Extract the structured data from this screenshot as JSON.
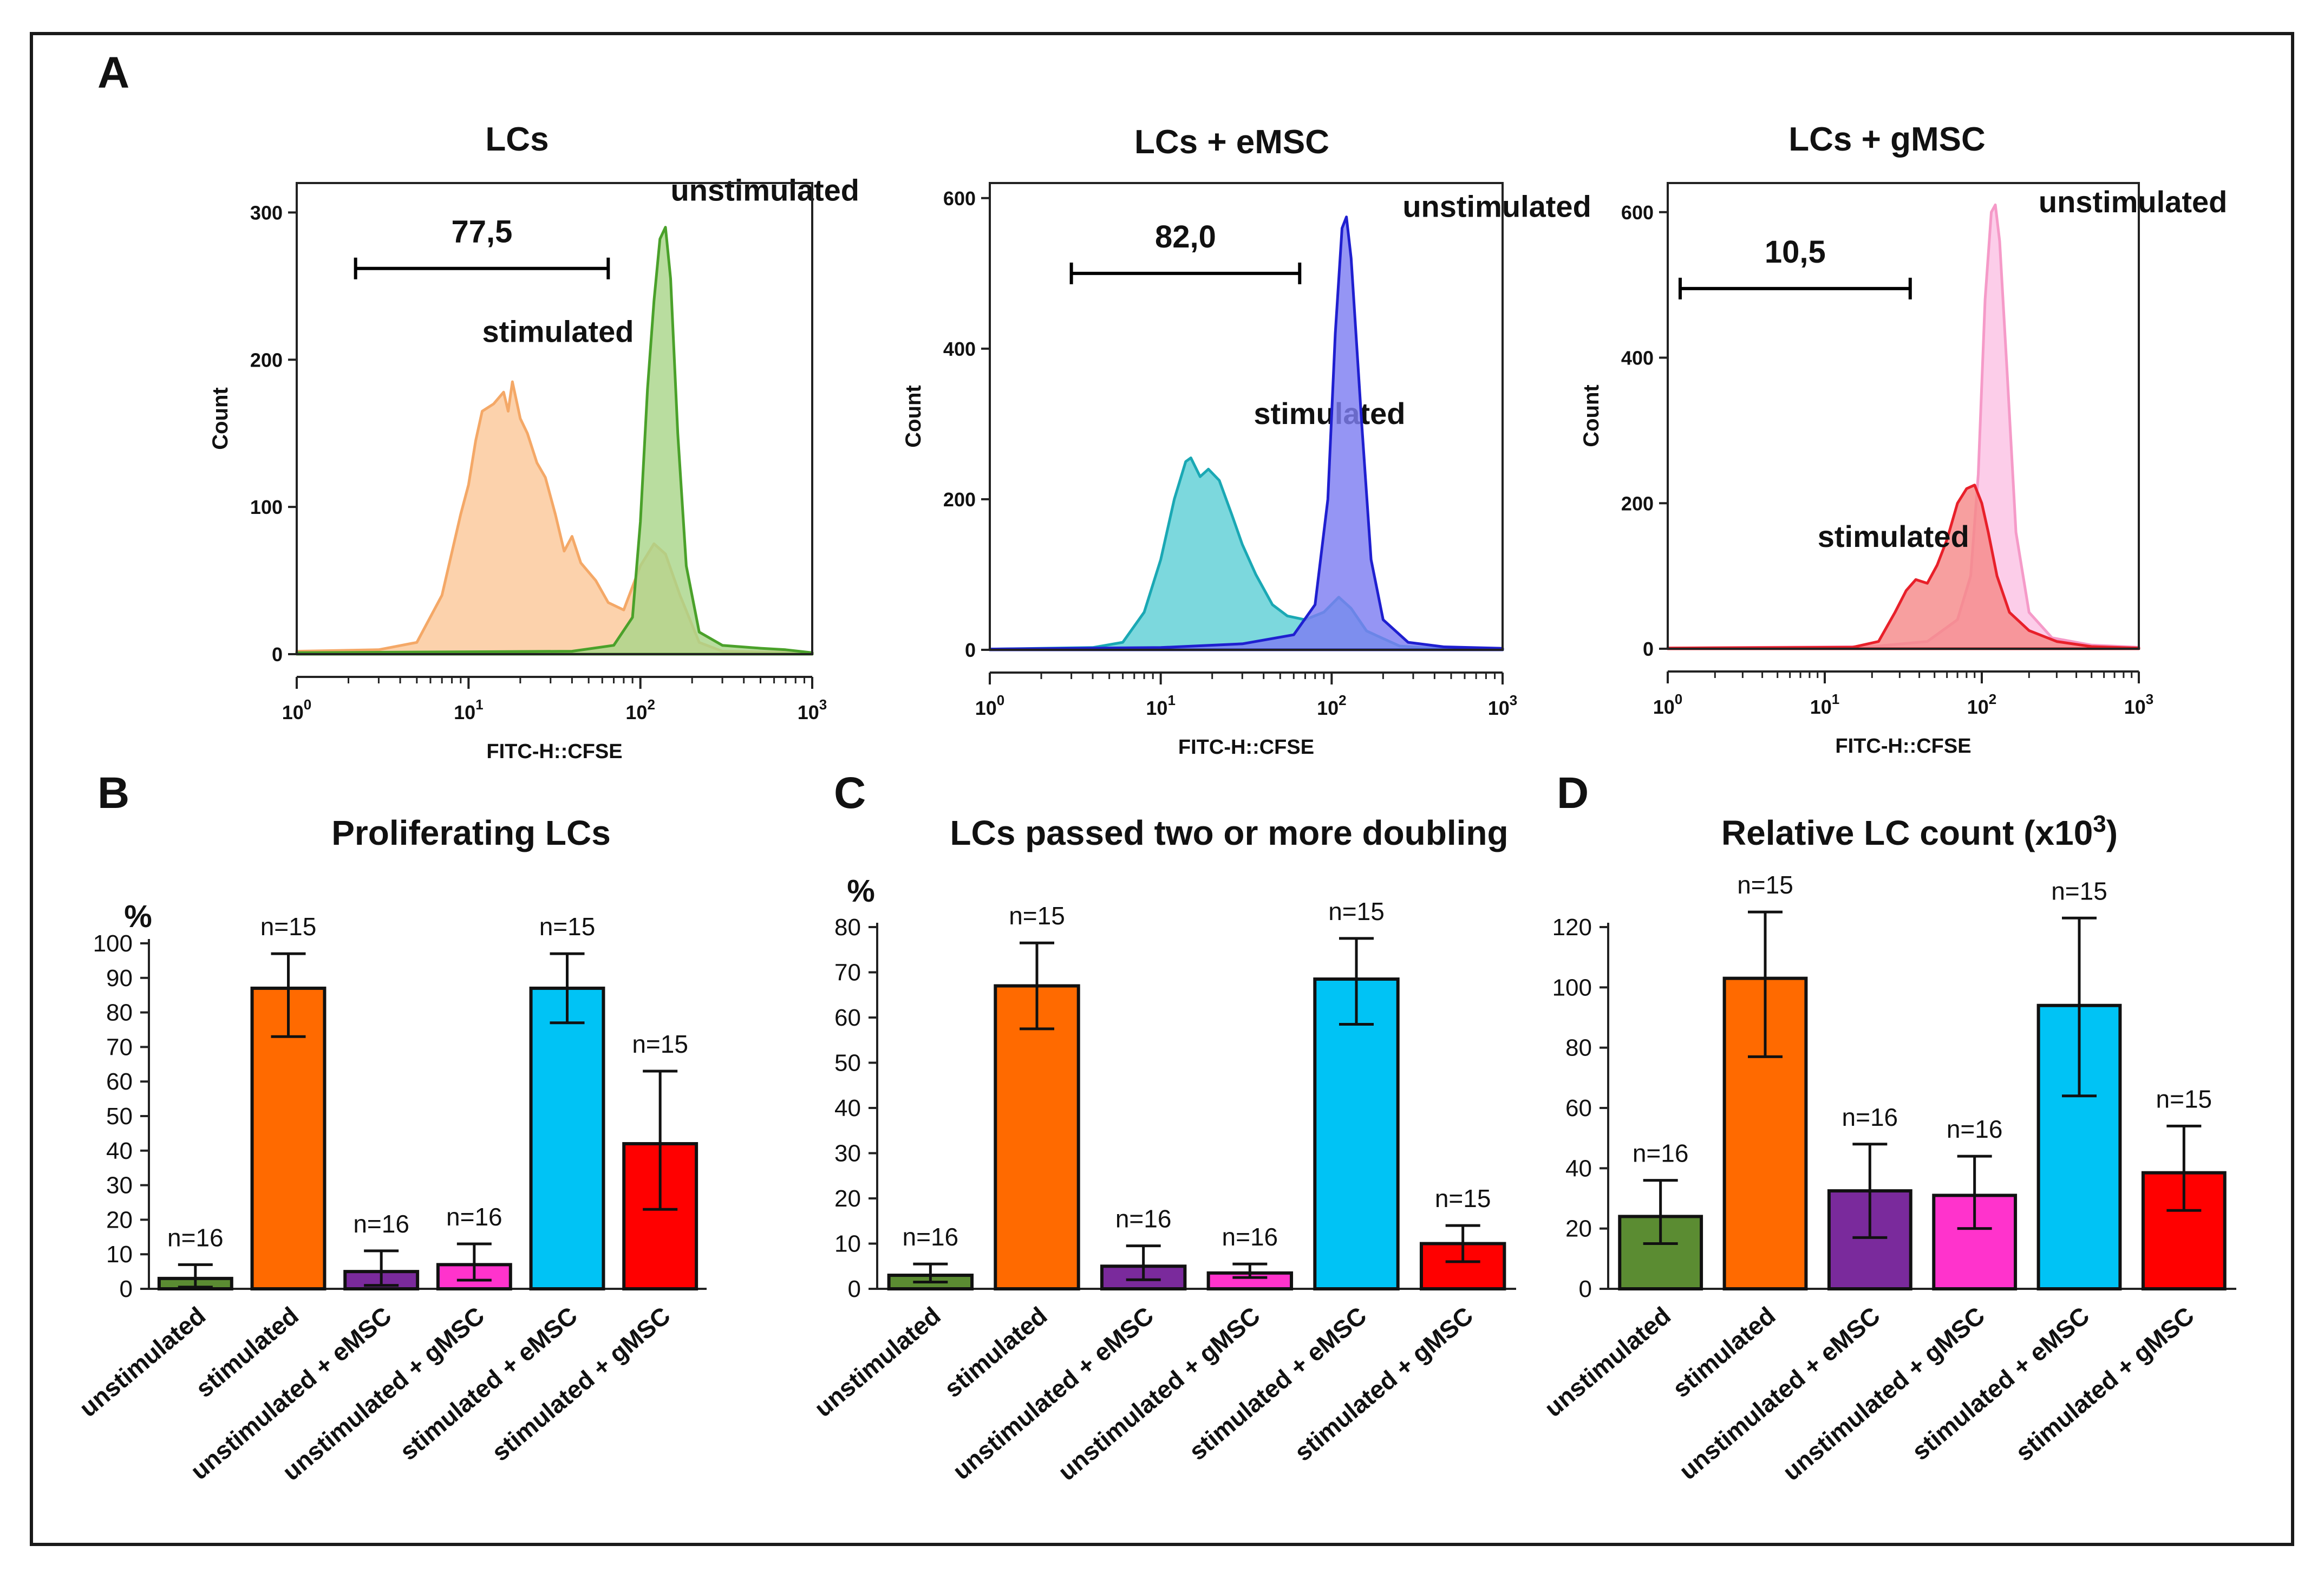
{
  "figure": {
    "panel_labels": [
      "A",
      "B",
      "C",
      "D"
    ],
    "colors": {
      "frame": "#1a1a1a",
      "axis": "#222222",
      "green_fill": "#a9d58a",
      "green_line": "#4aa12a",
      "orange_fill": "#fbc89a",
      "orange_line": "#f4a867",
      "blue_fill": "#7e7ef2",
      "blue_line": "#1f1fd0",
      "teal_fill": "#5fd0d6",
      "teal_line": "#1aa8b4",
      "pink_fill": "#fbc2e4",
      "pink_line": "#f59ac8",
      "red_fill": "#f58a8a",
      "red_line": "#e8202a"
    }
  },
  "chart_data": [
    {
      "panel": "A1",
      "type": "area",
      "title": "LCs",
      "xlabel": "FITC-H::CFSE",
      "ylabel": "Count",
      "x_scale": "log",
      "xlim": [
        1,
        1000
      ],
      "ylim": [
        0,
        320
      ],
      "x_ticks": [
        1,
        10,
        100,
        1000
      ],
      "x_tick_labels": [
        {
          "base": "10",
          "exp": "0"
        },
        {
          "base": "10",
          "exp": "1"
        },
        {
          "base": "10",
          "exp": "2"
        },
        {
          "base": "10",
          "exp": "3"
        }
      ],
      "y_ticks": [
        0,
        100,
        200,
        300
      ],
      "y_tick_labels": [
        "0",
        "100",
        "200",
        "300"
      ],
      "gate": {
        "from": 2.2,
        "to": 65,
        "y": 262,
        "label": "77,5"
      },
      "series": [
        {
          "name": "stimulated",
          "fill": "#fbc89a",
          "stroke": "#f4a867",
          "label": {
            "text": "stimulated",
            "x": 12,
            "y": 212
          },
          "points": [
            [
              1,
              2
            ],
            [
              3,
              3
            ],
            [
              5,
              8
            ],
            [
              7,
              40
            ],
            [
              9,
              95
            ],
            [
              10,
              115
            ],
            [
              11,
              145
            ],
            [
              12,
              165
            ],
            [
              14,
              170
            ],
            [
              16,
              178
            ],
            [
              17,
              165
            ],
            [
              18,
              185
            ],
            [
              20,
              160
            ],
            [
              22,
              150
            ],
            [
              25,
              130
            ],
            [
              28,
              120
            ],
            [
              32,
              95
            ],
            [
              36,
              70
            ],
            [
              40,
              80
            ],
            [
              45,
              62
            ],
            [
              55,
              50
            ],
            [
              65,
              35
            ],
            [
              80,
              30
            ],
            [
              100,
              60
            ],
            [
              120,
              75
            ],
            [
              140,
              68
            ],
            [
              170,
              40
            ],
            [
              220,
              8
            ],
            [
              300,
              2
            ],
            [
              1000,
              1
            ]
          ]
        },
        {
          "name": "unstimulated",
          "fill": "#a9d58a",
          "stroke": "#4aa12a",
          "label": {
            "text": "unstimulated",
            "x": 150,
            "y": 308
          },
          "points": [
            [
              1,
              1
            ],
            [
              40,
              2
            ],
            [
              70,
              6
            ],
            [
              90,
              25
            ],
            [
              100,
              90
            ],
            [
              110,
              180
            ],
            [
              120,
              240
            ],
            [
              130,
              282
            ],
            [
              140,
              290
            ],
            [
              150,
              255
            ],
            [
              165,
              150
            ],
            [
              185,
              60
            ],
            [
              220,
              15
            ],
            [
              300,
              6
            ],
            [
              500,
              4
            ],
            [
              700,
              3
            ],
            [
              1000,
              1
            ]
          ]
        }
      ]
    },
    {
      "panel": "A2",
      "type": "area",
      "title": "LCs + eMSC",
      "xlabel": "FITC-H::CFSE",
      "ylabel": "Count",
      "x_scale": "log",
      "xlim": [
        1,
        1000
      ],
      "ylim": [
        0,
        620
      ],
      "x_ticks": [
        1,
        10,
        100,
        1000
      ],
      "x_tick_labels": [
        {
          "base": "10",
          "exp": "0"
        },
        {
          "base": "10",
          "exp": "1"
        },
        {
          "base": "10",
          "exp": "2"
        },
        {
          "base": "10",
          "exp": "3"
        }
      ],
      "y_ticks": [
        0,
        200,
        400,
        600
      ],
      "y_tick_labels": [
        "0",
        "200",
        "400",
        "600"
      ],
      "gate": {
        "from": 3,
        "to": 65,
        "y": 500,
        "label": "82,0"
      },
      "series": [
        {
          "name": "stimulated",
          "fill": "#5fd0d6",
          "stroke": "#1aa8b4",
          "label": {
            "text": "stimulated",
            "x": 35,
            "y": 300
          },
          "points": [
            [
              1,
              1
            ],
            [
              4,
              3
            ],
            [
              6,
              10
            ],
            [
              8,
              50
            ],
            [
              10,
              120
            ],
            [
              12,
              200
            ],
            [
              14,
              250
            ],
            [
              15,
              255
            ],
            [
              17,
              230
            ],
            [
              19,
              240
            ],
            [
              22,
              225
            ],
            [
              26,
              180
            ],
            [
              30,
              140
            ],
            [
              36,
              100
            ],
            [
              45,
              60
            ],
            [
              55,
              45
            ],
            [
              70,
              40
            ],
            [
              90,
              50
            ],
            [
              110,
              70
            ],
            [
              130,
              55
            ],
            [
              160,
              25
            ],
            [
              250,
              5
            ],
            [
              400,
              2
            ],
            [
              1000,
              1
            ]
          ]
        },
        {
          "name": "unstimulated",
          "fill": "#7e7ef2",
          "stroke": "#1f1fd0",
          "label": {
            "text": "unstimulated",
            "x": 260,
            "y": 575
          },
          "points": [
            [
              1,
              1
            ],
            [
              10,
              3
            ],
            [
              30,
              8
            ],
            [
              60,
              20
            ],
            [
              80,
              60
            ],
            [
              95,
              200
            ],
            [
              105,
              420
            ],
            [
              115,
              560
            ],
            [
              122,
              575
            ],
            [
              130,
              520
            ],
            [
              150,
              300
            ],
            [
              170,
              120
            ],
            [
              200,
              40
            ],
            [
              280,
              10
            ],
            [
              450,
              4
            ],
            [
              1000,
              2
            ]
          ]
        }
      ]
    },
    {
      "panel": "A3",
      "type": "area",
      "title": "LCs + gMSC",
      "xlabel": "FITC-H::CFSE",
      "ylabel": "Count",
      "x_scale": "log",
      "xlim": [
        1,
        1000
      ],
      "ylim": [
        0,
        640
      ],
      "x_ticks": [
        1,
        10,
        100,
        1000
      ],
      "x_tick_labels": [
        {
          "base": "10",
          "exp": "0"
        },
        {
          "base": "10",
          "exp": "1"
        },
        {
          "base": "10",
          "exp": "2"
        },
        {
          "base": "10",
          "exp": "3"
        }
      ],
      "y_ticks": [
        0,
        200,
        400,
        600
      ],
      "y_tick_labels": [
        "0",
        "200",
        "400",
        "600"
      ],
      "gate": {
        "from": 1.2,
        "to": 35,
        "y": 495,
        "label": "10,5"
      },
      "series": [
        {
          "name": "unstimulated",
          "fill": "#fbc2e4",
          "stroke": "#f59ac8",
          "label": {
            "text": "unstimulated",
            "x": 230,
            "y": 600
          },
          "points": [
            [
              1,
              1
            ],
            [
              20,
              3
            ],
            [
              45,
              10
            ],
            [
              70,
              40
            ],
            [
              85,
              100
            ],
            [
              95,
              240
            ],
            [
              105,
              480
            ],
            [
              115,
              600
            ],
            [
              122,
              610
            ],
            [
              130,
              560
            ],
            [
              145,
              380
            ],
            [
              165,
              160
            ],
            [
              200,
              50
            ],
            [
              280,
              15
            ],
            [
              500,
              5
            ],
            [
              1000,
              2
            ]
          ]
        },
        {
          "name": "stimulated",
          "fill": "#f58a8a",
          "stroke": "#e8202a",
          "label": {
            "text": "stimulated",
            "x": 9,
            "y": 140
          },
          "points": [
            [
              1,
              1
            ],
            [
              15,
              2
            ],
            [
              22,
              10
            ],
            [
              28,
              50
            ],
            [
              33,
              80
            ],
            [
              38,
              95
            ],
            [
              45,
              90
            ],
            [
              52,
              115
            ],
            [
              60,
              150
            ],
            [
              70,
              200
            ],
            [
              80,
              220
            ],
            [
              90,
              225
            ],
            [
              100,
              200
            ],
            [
              110,
              160
            ],
            [
              125,
              100
            ],
            [
              150,
              50
            ],
            [
              200,
              25
            ],
            [
              300,
              10
            ],
            [
              500,
              3
            ],
            [
              1000,
              1
            ]
          ]
        }
      ]
    },
    {
      "panel": "B",
      "type": "bar",
      "title": "Proliferating LCs",
      "ylabel": "%",
      "ylim": [
        0,
        100
      ],
      "y_ticks": [
        0,
        10,
        20,
        30,
        40,
        50,
        60,
        70,
        80,
        90,
        100
      ],
      "y_tick_labels": [
        "0",
        "10",
        "20",
        "30",
        "40",
        "50",
        "60",
        "70",
        "80",
        "90",
        "100"
      ],
      "categories": [
        "unstimulated",
        "stimulated",
        "unstimulated + eMSC",
        "unstimulated + gMSC",
        "stimulated + eMSC",
        "stimulated + gMSC"
      ],
      "values": [
        3,
        87,
        5,
        7,
        87,
        42
      ],
      "err_low": [
        0.5,
        73,
        1,
        2.5,
        77,
        23
      ],
      "err_high": [
        7,
        97,
        11,
        13,
        97,
        63
      ],
      "n_labels": [
        "n=16",
        "n=15",
        "n=16",
        "n=16",
        "n=15",
        "n=15"
      ],
      "colors": [
        "#5b8c32",
        "#ff6a00",
        "#7a2a9c",
        "#ff33cc",
        "#00c3f5",
        "#ff0000"
      ]
    },
    {
      "panel": "C",
      "type": "bar",
      "title": "LCs passed two or more doubling",
      "ylabel": "%",
      "ylim": [
        0,
        80
      ],
      "y_ticks": [
        0,
        10,
        20,
        30,
        40,
        50,
        60,
        70,
        80
      ],
      "y_tick_labels": [
        "0",
        "10",
        "20",
        "30",
        "40",
        "50",
        "60",
        "70",
        "80"
      ],
      "categories": [
        "unstimulated",
        "stimulated",
        "unstimulated + eMSC",
        "unstimulated + gMSC",
        "stimulated + eMSC",
        "stimulated + gMSC"
      ],
      "values": [
        3,
        67,
        5,
        3.5,
        68.5,
        10
      ],
      "err_low": [
        1.5,
        57.5,
        2,
        2.5,
        58.5,
        6
      ],
      "err_high": [
        5.5,
        76.5,
        9.5,
        5.5,
        77.5,
        14
      ],
      "n_labels": [
        "n=16",
        "n=15",
        "n=16",
        "n=16",
        "n=15",
        "n=15"
      ],
      "colors": [
        "#5b8c32",
        "#ff6a00",
        "#7a2a9c",
        "#ff33cc",
        "#00c3f5",
        "#ff0000"
      ]
    },
    {
      "panel": "D",
      "type": "bar",
      "title": "Relative LC count (x10",
      "title_sup": "3",
      "title_end": ")",
      "ylabel": "",
      "ylim": [
        0,
        120
      ],
      "y_ticks": [
        0,
        20,
        40,
        60,
        80,
        100,
        120
      ],
      "y_tick_labels": [
        "0",
        "20",
        "40",
        "60",
        "80",
        "100",
        "120"
      ],
      "categories": [
        "unstimulated",
        "stimulated",
        "unstimulated + eMSC",
        "unstimulated + gMSC",
        "stimulated + eMSC",
        "stimulated + gMSC"
      ],
      "values": [
        24,
        103,
        32.5,
        31,
        94,
        38.5
      ],
      "err_low": [
        15,
        77,
        17,
        20,
        64,
        26
      ],
      "err_high": [
        36,
        125,
        48,
        44,
        123,
        54
      ],
      "n_labels": [
        "n=16",
        "n=15",
        "n=16",
        "n=16",
        "n=15",
        "n=15"
      ],
      "colors": [
        "#5b8c32",
        "#ff6a00",
        "#7a2a9c",
        "#ff33cc",
        "#00c3f5",
        "#ff0000"
      ]
    }
  ]
}
